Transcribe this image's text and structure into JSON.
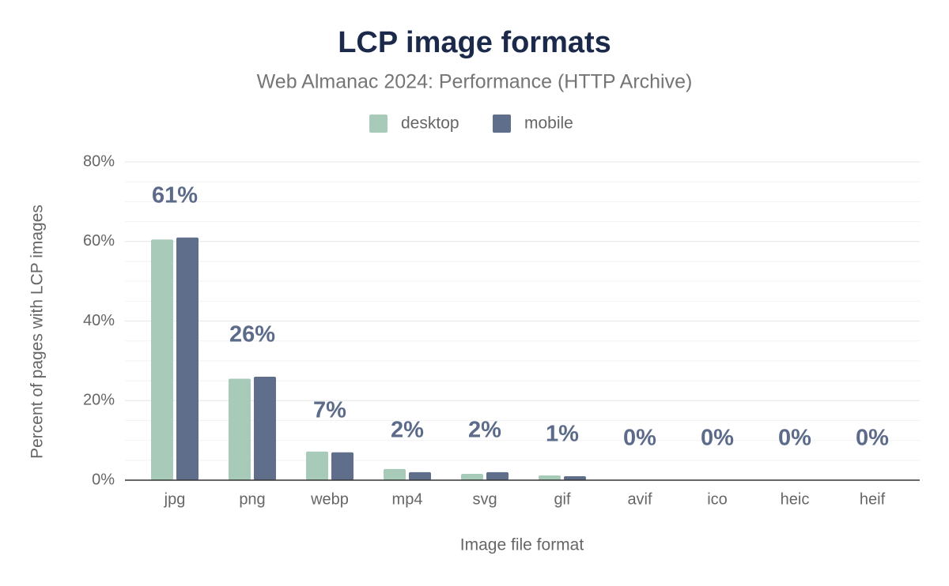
{
  "chart_data": {
    "type": "bar",
    "title": "LCP image formats",
    "subtitle": "Web Almanac 2024: Performance (HTTP Archive)",
    "x_label": "Image file format",
    "y_label": "Percent of pages with LCP images",
    "categories": [
      "jpg",
      "png",
      "webp",
      "mp4",
      "svg",
      "gif",
      "avif",
      "ico",
      "heic",
      "heif"
    ],
    "series": [
      {
        "name": "desktop",
        "color": "#a8cbb9",
        "values": [
          60.5,
          25.5,
          7.2,
          2.8,
          1.6,
          1.2,
          0,
          0,
          0,
          0
        ]
      },
      {
        "name": "mobile",
        "color": "#5f6e8b",
        "values": [
          61,
          26,
          7,
          2,
          2,
          1,
          0,
          0,
          0,
          0
        ],
        "value_labels": [
          "61%",
          "26%",
          "7%",
          "2%",
          "2%",
          "1%",
          "0%",
          "0%",
          "0%",
          "0%"
        ]
      }
    ],
    "ylim": [
      0,
      80
    ],
    "yticks": [
      {
        "value": 0,
        "label": "0%"
      },
      {
        "value": 20,
        "label": "20%"
      },
      {
        "value": 40,
        "label": "40%"
      },
      {
        "value": 60,
        "label": "60%"
      },
      {
        "value": 80,
        "label": "80%"
      }
    ],
    "yminorticks": [
      5,
      10,
      15,
      25,
      30,
      35,
      45,
      50,
      55,
      65,
      70,
      75
    ],
    "grid": true,
    "legend": "top"
  }
}
